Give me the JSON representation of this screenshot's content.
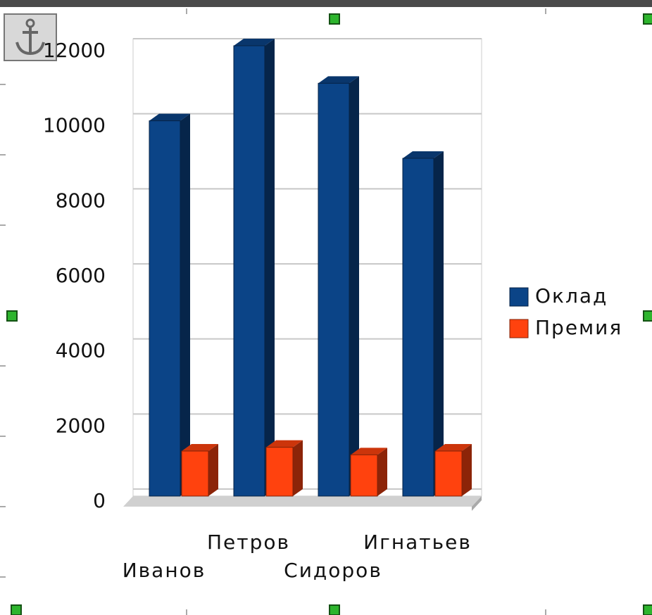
{
  "chart_data": {
    "type": "bar3d",
    "categories": [
      "Иванов",
      "Петров",
      "Сидоров",
      "Игнатьев"
    ],
    "series": [
      {
        "name": "Оклад",
        "color": "#0b4487",
        "values": [
          10000,
          12000,
          11000,
          9000
        ]
      },
      {
        "name": "Премия",
        "color": "#ff420e",
        "values": [
          1200,
          1300,
          1100,
          1200
        ]
      }
    ],
    "ylim": [
      0,
      12000
    ],
    "yticks": [
      0,
      2000,
      4000,
      6000,
      8000,
      10000,
      12000
    ],
    "grid": true,
    "legend": "right"
  }
}
